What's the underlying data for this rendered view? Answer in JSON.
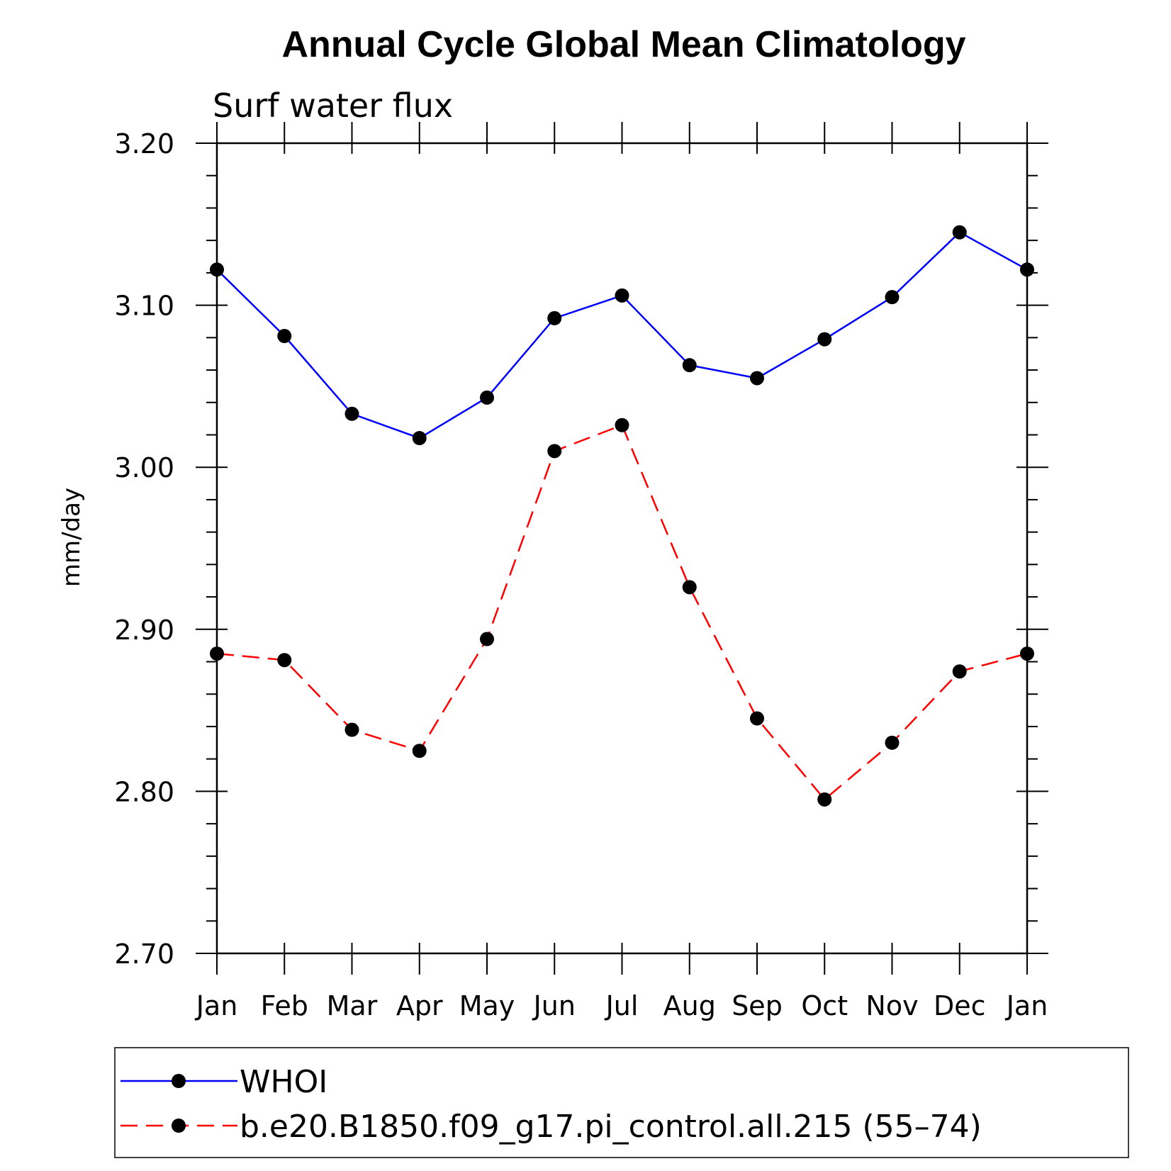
{
  "chart_data": {
    "type": "line",
    "title": "Annual Cycle Global Mean Climatology",
    "subtitle": "Surf water flux",
    "xlabel": "",
    "ylabel": "mm/day",
    "categories": [
      "Jan",
      "Feb",
      "Mar",
      "Apr",
      "May",
      "Jun",
      "Jul",
      "Aug",
      "Sep",
      "Oct",
      "Nov",
      "Dec",
      "Jan"
    ],
    "y_ticks": [
      "3.20",
      "3.10",
      "3.00",
      "2.90",
      "2.80",
      "2.70"
    ],
    "ylim": [
      2.7,
      3.2
    ],
    "grid": false,
    "legend_position": "bottom",
    "series": [
      {
        "name": "WHOI",
        "color": "#0000ff",
        "line_style": "solid",
        "marker": "filled-circle",
        "values": [
          3.122,
          3.081,
          3.033,
          3.018,
          3.043,
          3.092,
          3.106,
          3.063,
          3.055,
          3.079,
          3.105,
          3.145,
          3.122
        ]
      },
      {
        "name": "b.e20.B1850.f09_g17.pi_control.all.215 (55–74)",
        "color": "#ff0000",
        "line_style": "dashed",
        "marker": "filled-circle",
        "values": [
          2.885,
          2.881,
          2.838,
          2.825,
          2.894,
          3.01,
          3.026,
          2.926,
          2.845,
          2.795,
          2.83,
          2.874,
          2.885
        ]
      }
    ]
  }
}
